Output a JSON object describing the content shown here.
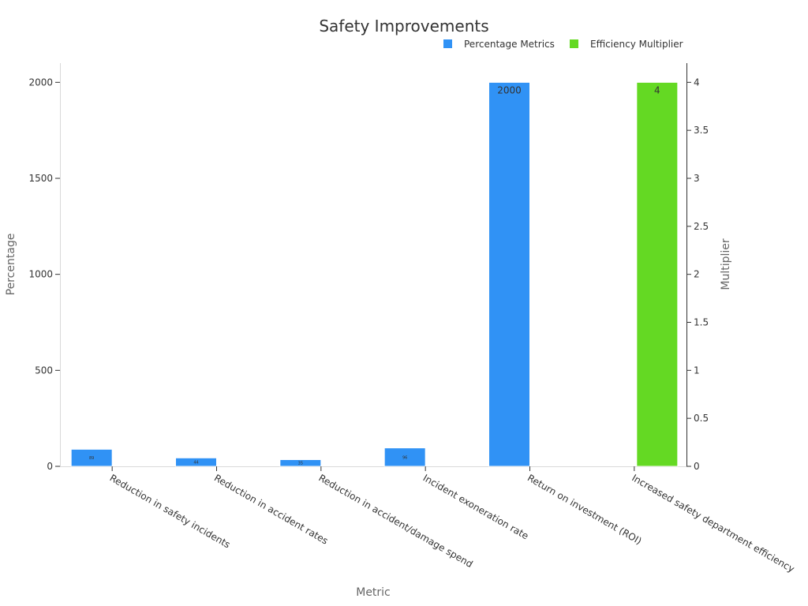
{
  "chart_data": {
    "type": "bar",
    "title": "Safety Improvements",
    "xlabel": "Metric",
    "ylabel": "Percentage",
    "y2label": "Multiplier",
    "ylim": [
      0,
      2100
    ],
    "y2lim": [
      0,
      4.2
    ],
    "yticks": [
      0,
      500,
      1000,
      1500,
      2000
    ],
    "y2ticks": [
      0,
      0.5,
      1,
      1.5,
      2,
      2.5,
      3,
      3.5,
      4
    ],
    "legend_position": "top-right",
    "grid": false,
    "categories": [
      "Reduction in safety incidents",
      "Reduction in accident rates",
      "Reduction in accident/damage spend",
      "Incident exoneration rate",
      "Return on investment (ROI)",
      "Increased safety department efficiency"
    ],
    "series": [
      {
        "name": "Percentage Metrics",
        "axis": "left",
        "color": "#3092f5",
        "values": [
          89,
          44,
          35,
          96,
          2000,
          null
        ],
        "labels": [
          "89",
          "44",
          "35",
          "96",
          "2000",
          null
        ]
      },
      {
        "name": "Efficiency Multiplier",
        "axis": "right",
        "color": "#64d923",
        "values": [
          null,
          null,
          null,
          null,
          null,
          4
        ],
        "labels": [
          null,
          null,
          null,
          null,
          null,
          "4"
        ]
      }
    ]
  }
}
